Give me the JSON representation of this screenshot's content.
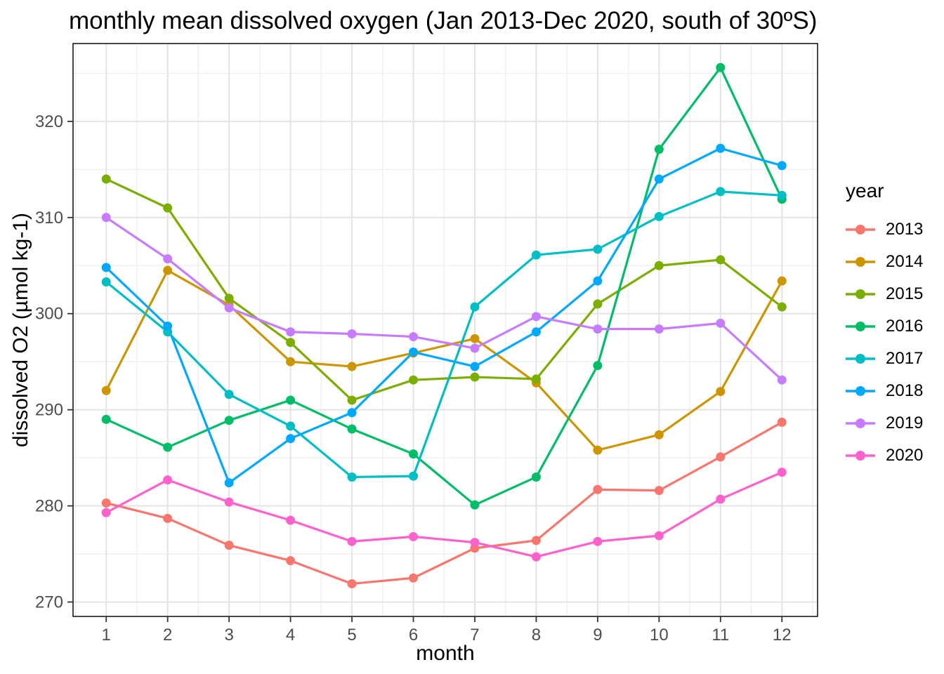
{
  "chart_data": {
    "type": "line",
    "title": "monthly mean dissolved oxygen (Jan 2013-Dec 2020, south of 30ºS)",
    "xlabel": "month",
    "ylabel": "dissolved O2 (µmol kg-1)",
    "legend_title": "year",
    "legend_position": "right",
    "grid": true,
    "x_ticks": [
      1,
      2,
      3,
      4,
      5,
      6,
      7,
      8,
      9,
      10,
      11,
      12
    ],
    "y_ticks": [
      270,
      280,
      290,
      300,
      310,
      320
    ],
    "xlim": [
      0.46,
      12.58
    ],
    "ylim": [
      268.5,
      328.1
    ],
    "categories": [
      1,
      2,
      3,
      4,
      5,
      6,
      7,
      8,
      9,
      10,
      11,
      12
    ],
    "series": [
      {
        "name": "2013",
        "color": "#F8766D",
        "values": [
          280.3,
          278.7,
          275.9,
          274.3,
          271.9,
          272.5,
          275.6,
          276.4,
          281.7,
          281.6,
          285.1,
          288.7
        ]
      },
      {
        "name": "2014",
        "color": "#CD9600",
        "values": [
          292.0,
          304.5,
          300.9,
          295.0,
          294.5,
          295.9,
          297.4,
          292.8,
          285.8,
          287.4,
          291.9,
          303.4
        ]
      },
      {
        "name": "2015",
        "color": "#7CAE00",
        "values": [
          314.0,
          311.0,
          301.6,
          297.0,
          291.0,
          293.1,
          293.4,
          293.2,
          301.0,
          305.0,
          305.6,
          300.7
        ]
      },
      {
        "name": "2016",
        "color": "#00BE67",
        "values": [
          289.0,
          286.1,
          288.9,
          291.0,
          288.0,
          285.4,
          280.1,
          283.0,
          294.6,
          317.1,
          325.6,
          311.9
        ]
      },
      {
        "name": "2017",
        "color": "#00BFC4",
        "values": [
          303.3,
          298.1,
          291.6,
          288.3,
          283.0,
          283.1,
          300.7,
          306.1,
          306.7,
          310.1,
          312.7,
          312.3
        ]
      },
      {
        "name": "2018",
        "color": "#00A9FF",
        "values": [
          304.8,
          298.7,
          282.4,
          287.0,
          289.7,
          296.0,
          294.5,
          298.1,
          303.4,
          314.0,
          317.2,
          315.4
        ]
      },
      {
        "name": "2019",
        "color": "#C77CFF",
        "values": [
          310.0,
          305.7,
          300.6,
          298.1,
          297.9,
          297.6,
          296.4,
          299.7,
          298.4,
          298.4,
          299.0,
          293.1
        ]
      },
      {
        "name": "2020",
        "color": "#FF61CC",
        "values": [
          279.3,
          282.7,
          280.4,
          278.5,
          276.3,
          276.8,
          276.2,
          274.7,
          276.3,
          276.9,
          280.7,
          283.5
        ]
      }
    ],
    "style": {
      "panel_border_color": "#1A1A1A",
      "grid_major_color": "#E4E4E4",
      "grid_minor_color": "#F0F0F0",
      "tick_color": "#333333",
      "tick_label_color": "#4D4D4D"
    }
  }
}
